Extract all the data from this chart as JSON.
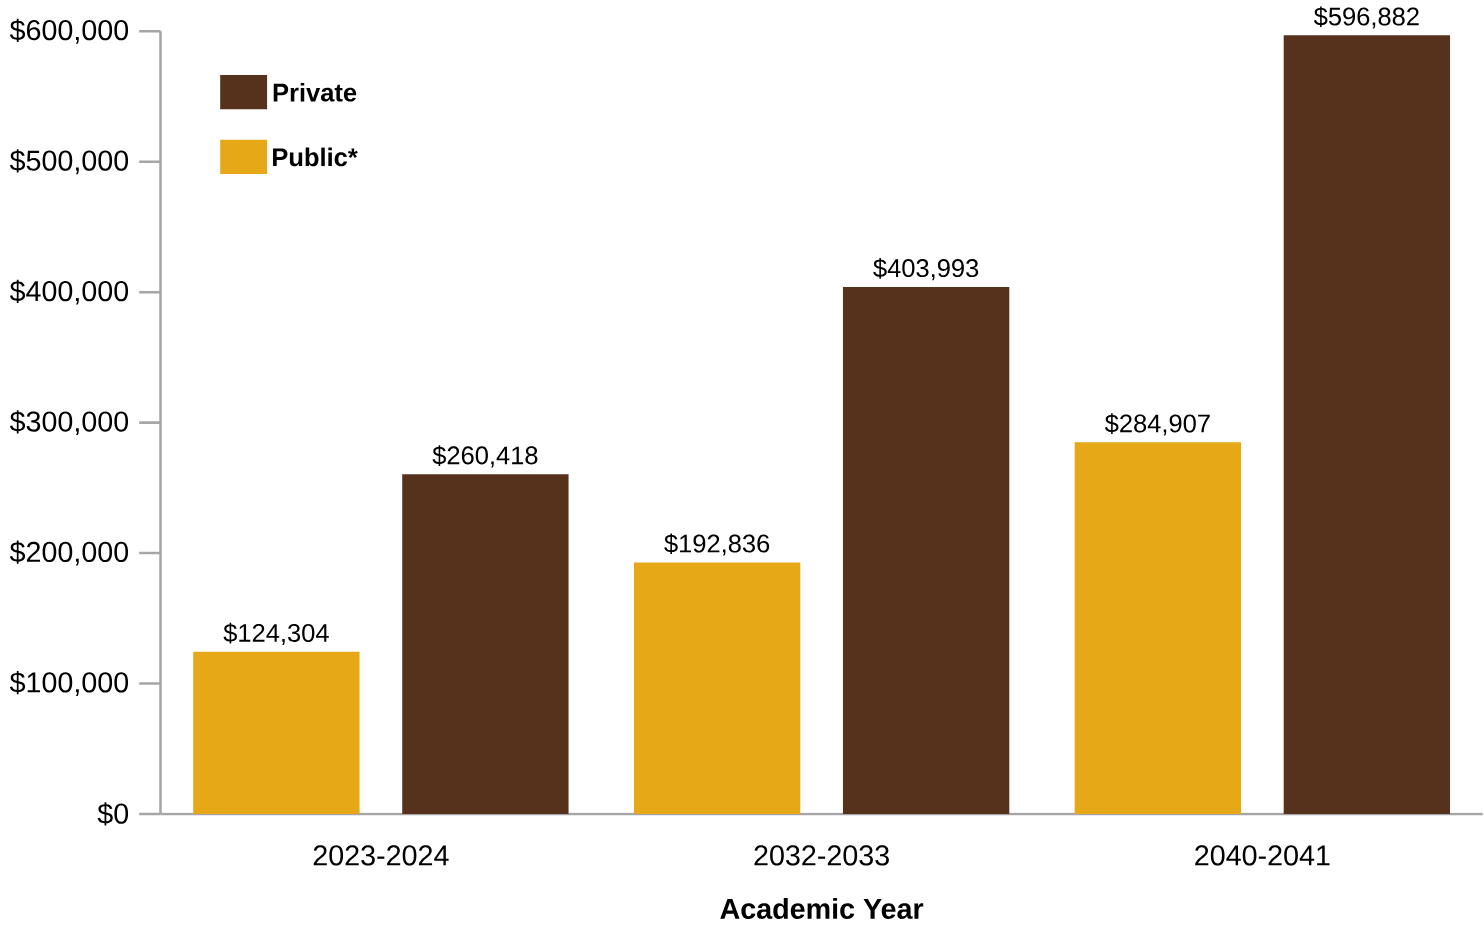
{
  "chart_data": {
    "type": "bar",
    "xlabel": "Academic Year",
    "categories": [
      "2023-2024",
      "2032-2033",
      "2040-2041"
    ],
    "series": [
      {
        "name": "Public*",
        "color": "#e6a817",
        "values": [
          124304,
          192836,
          284907
        ],
        "value_labels": [
          "$124,304",
          "$192,836",
          "$284,907"
        ]
      },
      {
        "name": "Private",
        "color": "#56311c",
        "values": [
          260418,
          403993,
          596882
        ],
        "value_labels": [
          "$260,418",
          "$403,993",
          "$596,882"
        ]
      }
    ],
    "ylim": [
      0,
      600000
    ],
    "yticks": [
      {
        "value": 0,
        "label": "$0"
      },
      {
        "value": 100000,
        "label": "$100,000"
      },
      {
        "value": 200000,
        "label": "$200,000"
      },
      {
        "value": 300000,
        "label": "$300,000"
      },
      {
        "value": 400000,
        "label": "$400,000"
      },
      {
        "value": 500000,
        "label": "$500,000"
      },
      {
        "value": 600000,
        "label": "$600,000"
      }
    ],
    "grid": false,
    "legend": "top left"
  }
}
